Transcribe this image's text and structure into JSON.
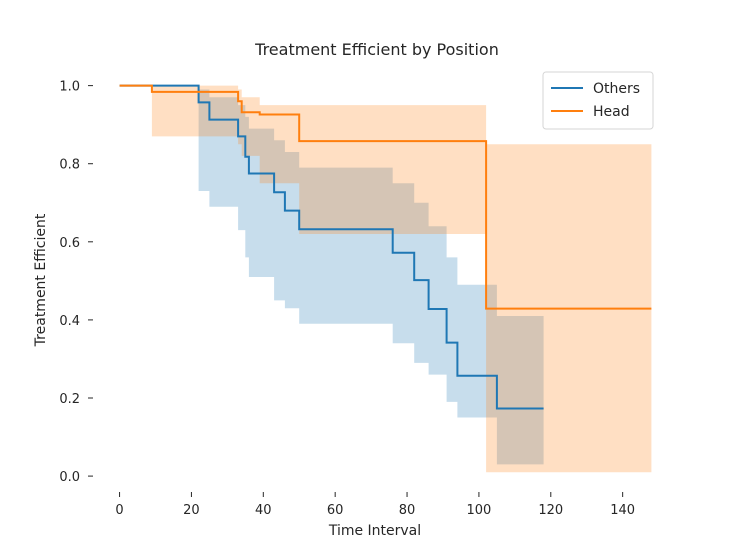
{
  "chart_data": {
    "type": "line",
    "subtype": "kaplan-meier step plot with confidence bands",
    "title": "Treatment Efficient by Position",
    "xlabel": "Time Interval",
    "ylabel": "Treatment Efficient",
    "xlim": [
      -6,
      149
    ],
    "ylim": [
      -0.01,
      1.04
    ],
    "xticks": [
      0,
      20,
      40,
      60,
      80,
      100,
      120,
      140
    ],
    "xtick_labels": [
      "0",
      "20",
      "40",
      "60",
      "80",
      "100",
      "120",
      "140"
    ],
    "yticks": [
      0.0,
      0.2,
      0.4,
      0.6,
      0.8,
      1.0
    ],
    "ytick_labels": [
      "0.0",
      "0.2",
      "0.4",
      "0.6",
      "0.8",
      "1.0"
    ],
    "grid": false,
    "legend_position": "top-right",
    "series": [
      {
        "name": "Others",
        "color": "#1f77b4",
        "band_color": "#1f77b4",
        "steps": [
          {
            "x": 0,
            "y": 1.0
          },
          {
            "x": 22,
            "y": 0.957
          },
          {
            "x": 25,
            "y": 0.913
          },
          {
            "x": 33,
            "y": 0.87
          },
          {
            "x": 35,
            "y": 0.818
          },
          {
            "x": 36,
            "y": 0.775
          },
          {
            "x": 43,
            "y": 0.727
          },
          {
            "x": 46,
            "y": 0.68
          },
          {
            "x": 50,
            "y": 0.632
          },
          {
            "x": 76,
            "y": 0.572
          },
          {
            "x": 82,
            "y": 0.502
          },
          {
            "x": 86,
            "y": 0.428
          },
          {
            "x": 91,
            "y": 0.342
          },
          {
            "x": 94,
            "y": 0.257
          },
          {
            "x": 105,
            "y": 0.173
          }
        ],
        "end_x": 118,
        "ci_lower": [
          1.0,
          0.73,
          0.69,
          0.63,
          0.56,
          0.51,
          0.45,
          0.43,
          0.39,
          0.34,
          0.29,
          0.26,
          0.19,
          0.15,
          0.03
        ],
        "ci_upper": [
          1.0,
          0.99,
          0.97,
          0.95,
          0.92,
          0.89,
          0.86,
          0.83,
          0.79,
          0.75,
          0.7,
          0.64,
          0.56,
          0.49,
          0.41
        ]
      },
      {
        "name": "Head",
        "color": "#ff7f0e",
        "band_color": "#ff7f0e",
        "steps": [
          {
            "x": 0,
            "y": 1.0
          },
          {
            "x": 9,
            "y": 0.984
          },
          {
            "x": 33,
            "y": 0.96
          },
          {
            "x": 34,
            "y": 0.932
          },
          {
            "x": 39,
            "y": 0.926
          },
          {
            "x": 50,
            "y": 0.858
          },
          {
            "x": 102,
            "y": 0.429
          }
        ],
        "end_x": 148,
        "ci_lower": [
          1.0,
          0.87,
          0.85,
          0.82,
          0.75,
          0.62,
          0.01
        ],
        "ci_upper": [
          1.0,
          1.0,
          0.99,
          0.97,
          0.95,
          0.95,
          0.85
        ]
      }
    ]
  }
}
